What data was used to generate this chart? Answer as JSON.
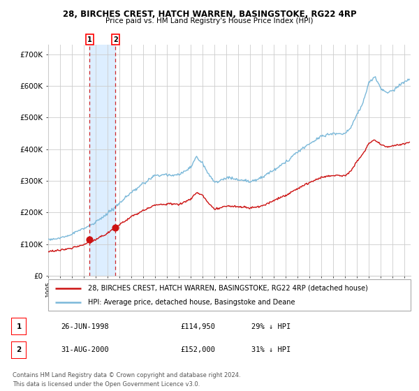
{
  "title1": "28, BIRCHES CREST, HATCH WARREN, BASINGSTOKE, RG22 4RP",
  "title2": "Price paid vs. HM Land Registry's House Price Index (HPI)",
  "ylim": [
    0,
    730000
  ],
  "yticks": [
    0,
    100000,
    200000,
    300000,
    400000,
    500000,
    600000,
    700000
  ],
  "ytick_labels": [
    "£0",
    "£100K",
    "£200K",
    "£300K",
    "£400K",
    "£500K",
    "£600K",
    "£700K"
  ],
  "legend_line1": "28, BIRCHES CREST, HATCH WARREN, BASINGSTOKE, RG22 4RP (detached house)",
  "legend_line2": "HPI: Average price, detached house, Basingstoke and Deane",
  "sale1_date": "26-JUN-1998",
  "sale1_price": "£114,950",
  "sale1_hpi": "29% ↓ HPI",
  "sale1_year": 1998.49,
  "sale1_value": 114950,
  "sale2_date": "31-AUG-2000",
  "sale2_price": "£152,000",
  "sale2_hpi": "31% ↓ HPI",
  "sale2_year": 2000.67,
  "sale2_value": 152000,
  "footnote1": "Contains HM Land Registry data © Crown copyright and database right 2024.",
  "footnote2": "This data is licensed under the Open Government Licence v3.0.",
  "hpi_color": "#7ab8d9",
  "price_color": "#cc1111",
  "shading_color": "#ddeeff",
  "grid_color": "#cccccc",
  "xlim_start": 1995,
  "xlim_end": 2025.5
}
